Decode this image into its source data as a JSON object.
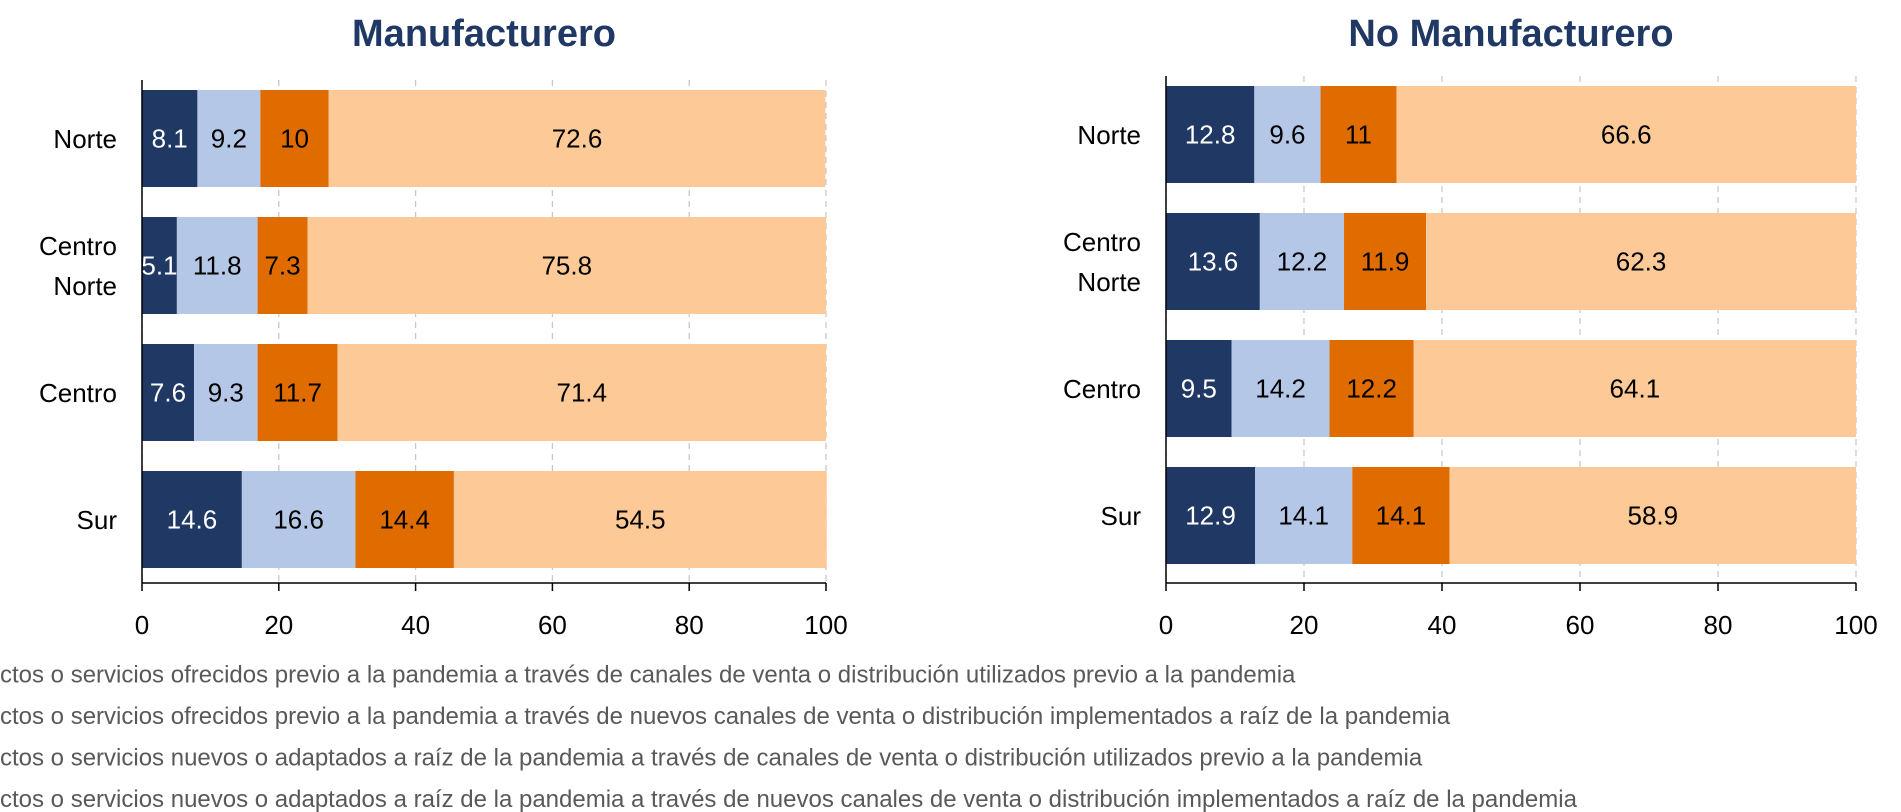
{
  "chart_data": [
    {
      "type": "stacked_barh",
      "title": "Manufacturero",
      "categories": [
        "Norte",
        "Centro Norte",
        "Centro",
        "Sur"
      ],
      "series": [
        {
          "name": "ctos o servicios ofrecidos previo a la pandemia a través de canales de venta o distribución utilizados previo a la pandemia",
          "color": "#203864",
          "values": [
            8.1,
            5.1,
            7.6,
            14.6
          ]
        },
        {
          "name": "ctos o servicios ofrecidos previo a la pandemia a través de nuevos canales de venta o distribución implementados a raíz de la pandemia",
          "color": "#b4c7e7",
          "values": [
            9.2,
            11.8,
            9.3,
            16.6
          ]
        },
        {
          "name": "ctos o servicios nuevos o adaptados a raíz de la pandemia a través de canales de venta o distribución utilizados previo a la pandemia",
          "color": "#e06c00",
          "values": [
            10.0,
            7.3,
            11.7,
            14.4
          ]
        },
        {
          "name": "ctos o servicios nuevos o adaptados a raíz de la pandemia a través de nuevos canales de venta o distribución implementados a raíz de la pandemia",
          "color": "#fdc996",
          "values": [
            72.6,
            75.8,
            71.4,
            54.5
          ]
        }
      ],
      "xlim": [
        0,
        100
      ],
      "xticks": [
        0,
        20,
        40,
        60,
        80,
        100
      ],
      "grid": true
    },
    {
      "type": "stacked_barh",
      "title": "No Manufacturero",
      "categories": [
        "Norte",
        "Centro Norte",
        "Centro",
        "Sur"
      ],
      "series": [
        {
          "color": "#203864",
          "values": [
            12.8,
            13.6,
            9.5,
            12.9
          ]
        },
        {
          "color": "#b4c7e7",
          "values": [
            9.6,
            12.2,
            14.2,
            14.1
          ]
        },
        {
          "color": "#e06c00",
          "values": [
            11.0,
            11.9,
            12.2,
            14.1
          ]
        },
        {
          "color": "#fdc996",
          "values": [
            66.6,
            62.3,
            64.1,
            58.9
          ]
        }
      ],
      "xlim": [
        0,
        100
      ],
      "xticks": [
        0,
        20,
        40,
        60,
        80,
        100
      ],
      "grid": true
    }
  ]
}
